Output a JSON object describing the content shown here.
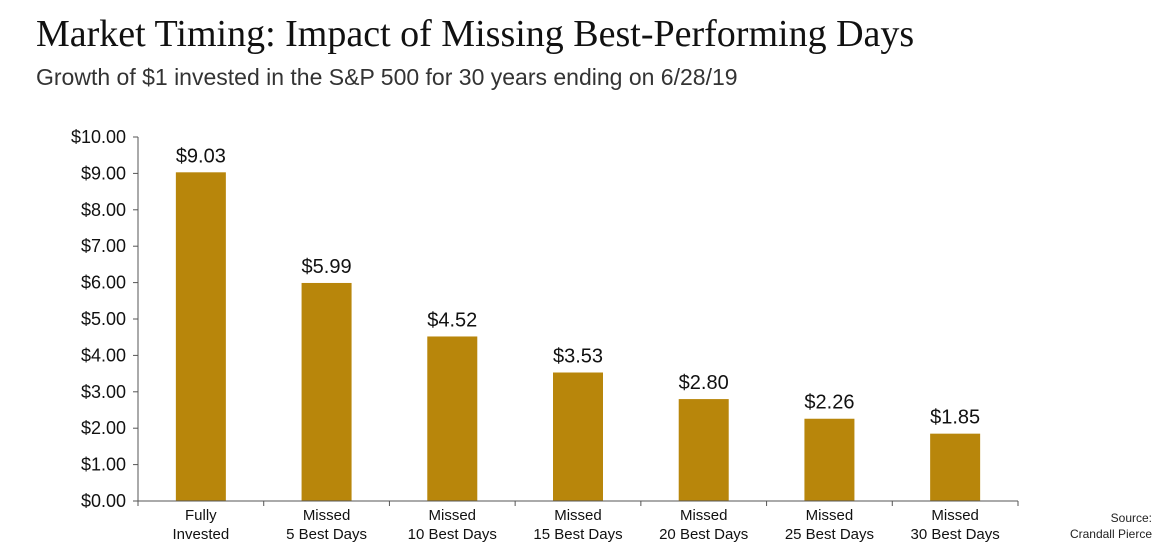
{
  "header": {
    "title": "Market Timing: Impact of Missing Best-Performing Days",
    "subtitle": "Growth of $1 invested in the S&P 500 for 30 years ending on 6/28/19"
  },
  "source": {
    "line1": "Source:",
    "line2": "Crandall Pierce"
  },
  "colors": {
    "bar": "#B8860B",
    "axis": "#555555"
  },
  "chart_data": {
    "type": "bar",
    "title": "Market Timing: Impact of Missing Best-Performing Days",
    "subtitle": "Growth of $1 invested in the S&P 500 for 30 years ending on 6/28/19",
    "categories": [
      [
        "Fully",
        "Invested"
      ],
      [
        "Missed",
        "5 Best Days"
      ],
      [
        "Missed",
        "10 Best Days"
      ],
      [
        "Missed",
        "15 Best Days"
      ],
      [
        "Missed",
        "20 Best Days"
      ],
      [
        "Missed",
        "25 Best Days"
      ],
      [
        "Missed",
        "30 Best Days"
      ]
    ],
    "values": [
      9.03,
      5.99,
      4.52,
      3.53,
      2.8,
      2.26,
      1.85
    ],
    "data_labels": [
      "$9.03",
      "$5.99",
      "$4.52",
      "$3.53",
      "$2.80",
      "$2.26",
      "$1.85"
    ],
    "yticks": [
      "$0.00",
      "$1.00",
      "$2.00",
      "$3.00",
      "$4.00",
      "$5.00",
      "$6.00",
      "$7.00",
      "$8.00",
      "$9.00",
      "$10.00"
    ],
    "ylim": [
      0,
      10
    ],
    "grid": false,
    "legend": "none"
  }
}
